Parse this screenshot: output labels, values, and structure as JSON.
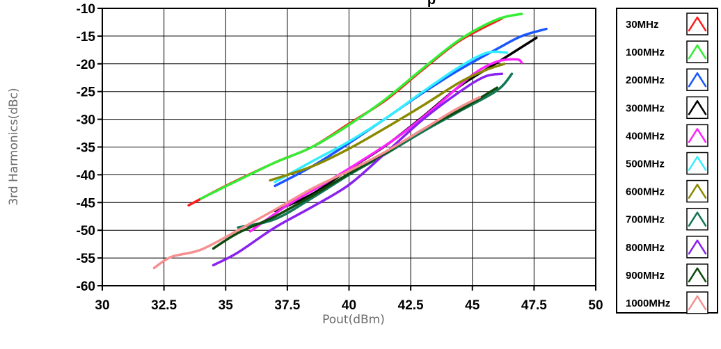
{
  "chart_data": {
    "type": "line",
    "title": "p",
    "xlabel": "Pout(dBm)",
    "ylabel": "3rd Harmonics(dBc)",
    "xlim": [
      30,
      50
    ],
    "ylim": [
      -60,
      -10
    ],
    "x_ticks": [
      "30",
      "32.5",
      "35",
      "37.5",
      "40",
      "42.5",
      "45",
      "47.5",
      "50"
    ],
    "y_ticks": [
      "-10",
      "-15",
      "-20",
      "-25",
      "-30",
      "-35",
      "-40",
      "-45",
      "-50",
      "-55",
      "-60"
    ],
    "grid": true,
    "legend_position": "right",
    "series": [
      {
        "name": "30MHz",
        "color": "#ff1a1a",
        "points": [
          [
            33.5,
            -45.5
          ],
          [
            35,
            -42
          ],
          [
            37,
            -37.8
          ],
          [
            38.5,
            -35
          ],
          [
            40,
            -30.8
          ],
          [
            41.5,
            -26.5
          ],
          [
            43,
            -21
          ],
          [
            44.5,
            -15.8
          ],
          [
            46.2,
            -11.8
          ]
        ]
      },
      {
        "name": "100MHz",
        "color": "#33ee33",
        "points": [
          [
            34,
            -44.3
          ],
          [
            35.5,
            -41
          ],
          [
            37,
            -37.8
          ],
          [
            38.5,
            -35
          ],
          [
            40,
            -31
          ],
          [
            41.5,
            -26.3
          ],
          [
            43,
            -20.8
          ],
          [
            44.5,
            -15.6
          ],
          [
            46,
            -12
          ],
          [
            47,
            -11
          ]
        ]
      },
      {
        "name": "200MHz",
        "color": "#1a55ff",
        "points": [
          [
            37,
            -42
          ],
          [
            38.5,
            -38.5
          ],
          [
            40,
            -34.3
          ],
          [
            41.5,
            -29.8
          ],
          [
            43,
            -25.2
          ],
          [
            44.5,
            -21
          ],
          [
            46,
            -17.3
          ],
          [
            47,
            -15
          ],
          [
            48,
            -13.7
          ]
        ]
      },
      {
        "name": "300MHz",
        "color": "#000000",
        "points": [
          [
            37,
            -46.5
          ],
          [
            38.5,
            -43.5
          ],
          [
            40,
            -39
          ],
          [
            41.5,
            -34.7
          ],
          [
            43,
            -29.5
          ],
          [
            44.5,
            -24
          ],
          [
            46,
            -19.8
          ],
          [
            47.6,
            -15.3
          ]
        ]
      },
      {
        "name": "400MHz",
        "color": "#ff22ff",
        "points": [
          [
            36,
            -50.2
          ],
          [
            37.5,
            -45.5
          ],
          [
            39,
            -41.6
          ],
          [
            40.5,
            -37.5
          ],
          [
            42,
            -33.1
          ],
          [
            43.5,
            -27.8
          ],
          [
            45,
            -22
          ],
          [
            46,
            -19.6
          ],
          [
            46.8,
            -19.2
          ],
          [
            47,
            -19.8
          ]
        ]
      },
      {
        "name": "500MHz",
        "color": "#33eeff",
        "points": [
          [
            37,
            -41.3
          ],
          [
            38.5,
            -37.6
          ],
          [
            40,
            -34
          ],
          [
            41.5,
            -29.8
          ],
          [
            43,
            -25
          ],
          [
            44.5,
            -20.5
          ],
          [
            45.6,
            -18
          ],
          [
            46.4,
            -18
          ]
        ]
      },
      {
        "name": "600MHz",
        "color": "#8a8a00",
        "points": [
          [
            36.8,
            -41
          ],
          [
            38.5,
            -38.5
          ],
          [
            40,
            -35.3
          ],
          [
            41.5,
            -31.5
          ],
          [
            43,
            -27.5
          ],
          [
            44.5,
            -23.3
          ],
          [
            45.5,
            -21.2
          ],
          [
            46.3,
            -20
          ]
        ]
      },
      {
        "name": "700MHz",
        "color": "#117755",
        "points": [
          [
            35.5,
            -49.5
          ],
          [
            37,
            -48
          ],
          [
            38.5,
            -44.2
          ],
          [
            40,
            -40
          ],
          [
            41.5,
            -36.2
          ],
          [
            43,
            -32.2
          ],
          [
            44.5,
            -28.5
          ],
          [
            46,
            -24.8
          ],
          [
            46.6,
            -21.8
          ]
        ]
      },
      {
        "name": "800MHz",
        "color": "#8a22ee",
        "points": [
          [
            34.5,
            -56.3
          ],
          [
            35.5,
            -54
          ],
          [
            37,
            -49.5
          ],
          [
            38.5,
            -45.8
          ],
          [
            40,
            -41.8
          ],
          [
            41.5,
            -36
          ],
          [
            43,
            -30
          ],
          [
            44.5,
            -25
          ],
          [
            45.5,
            -22.3
          ],
          [
            46.2,
            -21.8
          ]
        ]
      },
      {
        "name": "900MHz",
        "color": "#0e4a0e",
        "points": [
          [
            34.5,
            -53.3
          ],
          [
            35.5,
            -50.5
          ],
          [
            37,
            -47.5
          ],
          [
            38.5,
            -43.8
          ],
          [
            40,
            -39.8
          ],
          [
            41.5,
            -36
          ],
          [
            43,
            -31.8
          ],
          [
            44.5,
            -28.3
          ],
          [
            46,
            -24.3
          ]
        ]
      },
      {
        "name": "1000MHz",
        "color": "#f59090",
        "points": [
          [
            32.1,
            -56.8
          ],
          [
            32.8,
            -54.8
          ],
          [
            34,
            -53.5
          ],
          [
            35.5,
            -50
          ],
          [
            37,
            -46.3
          ],
          [
            38.5,
            -42.5
          ],
          [
            40,
            -39.3
          ],
          [
            41.5,
            -35.8
          ],
          [
            43,
            -31.8
          ],
          [
            44.3,
            -28.3
          ],
          [
            45.3,
            -26
          ]
        ]
      }
    ]
  }
}
